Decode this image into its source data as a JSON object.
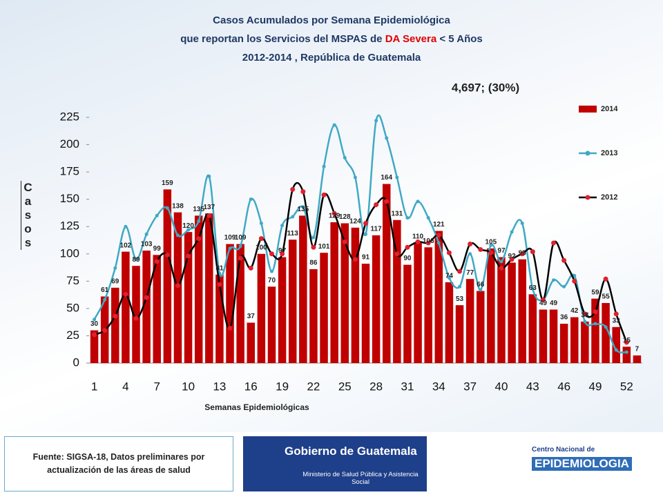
{
  "chart_data": {
    "type": "bar",
    "title_lines": [
      "Casos Acumulados por Semana Epidemiológica",
      "que reportan los Servicios del MSPAS de ",
      "DA Severa",
      " < 5 Años",
      "2012-2014 , República de Guatemala"
    ],
    "annotation": "4,697; (30%)",
    "y_label": "Casos",
    "x_label": "Semanas Epidemiológicas",
    "categories": [
      1,
      null,
      null,
      4,
      null,
      null,
      7,
      null,
      null,
      10,
      null,
      null,
      13,
      null,
      null,
      16,
      null,
      null,
      19,
      null,
      null,
      22,
      null,
      null,
      25,
      null,
      null,
      28,
      null,
      null,
      31,
      null,
      null,
      34,
      null,
      null,
      37,
      null,
      null,
      40,
      null,
      null,
      43,
      null,
      null,
      46,
      null,
      null,
      49,
      null,
      null,
      52,
      null
    ],
    "ylim": [
      0,
      225
    ],
    "yticks": [
      0,
      25,
      50,
      75,
      100,
      125,
      150,
      175,
      200,
      225
    ],
    "legend": "top-right",
    "series": [
      {
        "name": "2014",
        "type": "bar",
        "color": "#c00000",
        "values": [
          30,
          61,
          69,
          102,
          89,
          103,
          99,
          159,
          138,
          120,
          135,
          137,
          81,
          109,
          109,
          37,
          100,
          70,
          97,
          113,
          135,
          86,
          101,
          129,
          128,
          124,
          91,
          117,
          164,
          131,
          90,
          110,
          106,
          121,
          74,
          53,
          77,
          66,
          105,
          97,
          92,
          95,
          63,
          49,
          49,
          36,
          42,
          38,
          59,
          55,
          33,
          15,
          7
        ]
      },
      {
        "name": "2013",
        "type": "line",
        "color": "#3fa9c4",
        "values": [
          40,
          58,
          87,
          125,
          95,
          118,
          135,
          142,
          117,
          122,
          130,
          171,
          82,
          105,
          107,
          150,
          128,
          84,
          126,
          134,
          143,
          115,
          180,
          218,
          188,
          170,
          118,
          222,
          206,
          170,
          133,
          148,
          133,
          110,
          78,
          70,
          100,
          67,
          108,
          93,
          120,
          128,
          68,
          58,
          76,
          70,
          80,
          38,
          36,
          33,
          12,
          10,
          null
        ]
      },
      {
        "name": "2012",
        "type": "line",
        "color": "#000000",
        "marker_color": "#e0202c",
        "values": [
          26,
          30,
          43,
          63,
          41,
          60,
          93,
          99,
          71,
          98,
          114,
          135,
          72,
          32,
          96,
          87,
          114,
          100,
          100,
          159,
          157,
          106,
          154,
          137,
          111,
          95,
          128,
          145,
          148,
          100,
          106,
          111,
          110,
          117,
          101,
          84,
          109,
          104,
          101,
          87,
          95,
          100,
          102,
          58,
          110,
          94,
          75,
          45,
          47,
          77,
          45,
          19,
          null
        ]
      }
    ]
  },
  "footer": {
    "source_lines": [
      "Fuente: SIGSA-18, Datos preliminares por",
      "actualización de las áreas de salud"
    ],
    "gobierno": "Gobierno de Guatemala",
    "ministerio": "Ministerio de Salud Pública y Asistencia Social",
    "centro": "Centro Nacional de",
    "epidemiologia": "EPIDEMIOLOGIA"
  }
}
